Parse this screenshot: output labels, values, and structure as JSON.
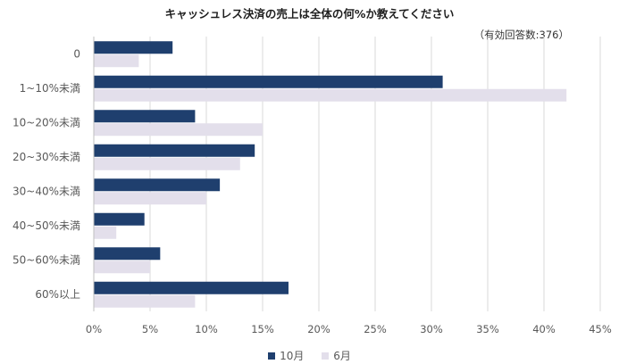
{
  "chart_data": {
    "type": "bar",
    "orientation": "horizontal",
    "title": "キャッシュレス決済の売上は全体の何%か教えてください",
    "note": "（有効回答数:376）",
    "categories": [
      "0",
      "1~10%未満",
      "10~20%未満",
      "20~30%未満",
      "30~40%未満",
      "40~50%未満",
      "50~60%未満",
      "60%以上"
    ],
    "series": [
      {
        "name": "10月",
        "color": "#1f3f6e",
        "values": [
          7,
          31,
          9,
          14.3,
          11.2,
          4.5,
          5.9,
          17.3
        ]
      },
      {
        "name": "6月",
        "color": "#e3dfeb",
        "values": [
          4,
          42,
          15,
          13,
          10,
          2,
          5,
          9
        ]
      }
    ],
    "xlim": [
      0,
      45
    ],
    "xticks": [
      "0%",
      "5%",
      "10%",
      "15%",
      "20%",
      "25%",
      "30%",
      "35%",
      "40%",
      "45%"
    ],
    "grid": true,
    "legend_position": "bottom"
  }
}
